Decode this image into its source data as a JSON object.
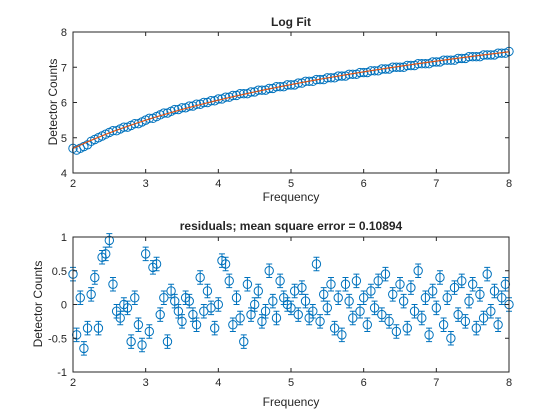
{
  "chart_data": [
    {
      "type": "scatter",
      "title": "Log Fit",
      "xlabel": "Frequency",
      "ylabel": "Detector Counts",
      "xlim": [
        2,
        8
      ],
      "ylim": [
        4,
        8
      ],
      "xticks": [
        2,
        3,
        4,
        5,
        6,
        7,
        8
      ],
      "yticks": [
        4,
        5,
        6,
        7,
        8
      ],
      "grid": false,
      "colors": {
        "markers": "#0072BD",
        "fit": "#D95319"
      },
      "fit": {
        "model": "log",
        "x": [
          2,
          3,
          4,
          5,
          6,
          7,
          8
        ],
        "y": [
          4.65,
          5.55,
          6.1,
          6.5,
          6.85,
          7.15,
          7.45
        ]
      },
      "series": [
        {
          "marker": "circle",
          "x": [
            2.0,
            2.05,
            2.1,
            2.15,
            2.2,
            2.25,
            2.3,
            2.35,
            2.4,
            2.45,
            2.5,
            2.55,
            2.6,
            2.65,
            2.7,
            2.75,
            2.8,
            2.85,
            2.9,
            2.95,
            3.0,
            3.05,
            3.1,
            3.15,
            3.2,
            3.25,
            3.3,
            3.35,
            3.4,
            3.45,
            3.5,
            3.55,
            3.6,
            3.65,
            3.7,
            3.75,
            3.8,
            3.85,
            3.9,
            3.95,
            4.0,
            4.05,
            4.1,
            4.15,
            4.2,
            4.25,
            4.3,
            4.35,
            4.4,
            4.45,
            4.5,
            4.55,
            4.6,
            4.65,
            4.7,
            4.75,
            4.8,
            4.85,
            4.9,
            4.95,
            5.0,
            5.05,
            5.1,
            5.15,
            5.2,
            5.25,
            5.3,
            5.35,
            5.4,
            5.45,
            5.5,
            5.55,
            5.6,
            5.65,
            5.7,
            5.75,
            5.8,
            5.85,
            5.9,
            5.95,
            6.0,
            6.05,
            6.1,
            6.15,
            6.2,
            6.25,
            6.3,
            6.35,
            6.4,
            6.45,
            6.5,
            6.55,
            6.6,
            6.65,
            6.7,
            6.75,
            6.8,
            6.85,
            6.9,
            6.95,
            7.0,
            7.05,
            7.1,
            7.15,
            7.2,
            7.25,
            7.3,
            7.35,
            7.4,
            7.45,
            7.5,
            7.55,
            7.6,
            7.65,
            7.7,
            7.75,
            7.8,
            7.85,
            7.9,
            7.95,
            8.0
          ],
          "y": [
            4.7,
            4.65,
            4.7,
            4.75,
            4.8,
            4.9,
            4.95,
            5.0,
            5.05,
            5.1,
            5.15,
            5.2,
            5.2,
            5.25,
            5.3,
            5.3,
            5.35,
            5.4,
            5.4,
            5.45,
            5.5,
            5.55,
            5.55,
            5.6,
            5.65,
            5.7,
            5.7,
            5.75,
            5.8,
            5.8,
            5.85,
            5.85,
            5.9,
            5.9,
            5.95,
            5.95,
            6.0,
            6.0,
            6.05,
            6.05,
            6.1,
            6.1,
            6.15,
            6.15,
            6.2,
            6.2,
            6.25,
            6.25,
            6.25,
            6.3,
            6.3,
            6.35,
            6.35,
            6.35,
            6.4,
            6.4,
            6.45,
            6.45,
            6.45,
            6.5,
            6.5,
            6.5,
            6.55,
            6.55,
            6.6,
            6.6,
            6.6,
            6.65,
            6.65,
            6.65,
            6.7,
            6.7,
            6.7,
            6.75,
            6.75,
            6.75,
            6.8,
            6.8,
            6.8,
            6.85,
            6.85,
            6.85,
            6.9,
            6.9,
            6.9,
            6.95,
            6.95,
            6.95,
            7.0,
            7.0,
            7.0,
            7.0,
            7.05,
            7.05,
            7.05,
            7.1,
            7.1,
            7.1,
            7.1,
            7.15,
            7.15,
            7.15,
            7.2,
            7.2,
            7.2,
            7.2,
            7.25,
            7.25,
            7.25,
            7.3,
            7.3,
            7.3,
            7.3,
            7.35,
            7.35,
            7.35,
            7.35,
            7.4,
            7.4,
            7.4,
            7.45
          ]
        }
      ]
    },
    {
      "type": "scatter",
      "title": "residuals; mean square error = 0.10894",
      "xlabel": "Frequency",
      "ylabel": "Detector Counts",
      "xlim": [
        2,
        8
      ],
      "ylim": [
        -1,
        1
      ],
      "xticks": [
        2,
        3,
        4,
        5,
        6,
        7,
        8
      ],
      "yticks": [
        -1,
        -0.5,
        0,
        0.5,
        1
      ],
      "grid": false,
      "colors": {
        "markers": "#0072BD"
      },
      "series": [
        {
          "marker": "circle",
          "error_bar": 0.1,
          "x": [
            2.0,
            2.05,
            2.1,
            2.15,
            2.2,
            2.25,
            2.3,
            2.35,
            2.4,
            2.45,
            2.5,
            2.55,
            2.6,
            2.65,
            2.7,
            2.75,
            2.8,
            2.85,
            2.9,
            2.95,
            3.0,
            3.05,
            3.1,
            3.15,
            3.2,
            3.25,
            3.3,
            3.35,
            3.4,
            3.45,
            3.5,
            3.55,
            3.6,
            3.65,
            3.7,
            3.75,
            3.8,
            3.85,
            3.9,
            3.95,
            4.0,
            4.05,
            4.1,
            4.15,
            4.2,
            4.25,
            4.3,
            4.35,
            4.4,
            4.45,
            4.5,
            4.55,
            4.6,
            4.65,
            4.7,
            4.75,
            4.8,
            4.85,
            4.9,
            4.95,
            5.0,
            5.05,
            5.1,
            5.15,
            5.2,
            5.25,
            5.3,
            5.35,
            5.4,
            5.45,
            5.5,
            5.55,
            5.6,
            5.65,
            5.7,
            5.75,
            5.8,
            5.85,
            5.9,
            5.95,
            6.0,
            6.05,
            6.1,
            6.15,
            6.2,
            6.25,
            6.3,
            6.35,
            6.4,
            6.45,
            6.5,
            6.55,
            6.6,
            6.65,
            6.7,
            6.75,
            6.8,
            6.85,
            6.9,
            6.95,
            7.0,
            7.05,
            7.1,
            7.15,
            7.2,
            7.25,
            7.3,
            7.35,
            7.4,
            7.45,
            7.5,
            7.55,
            7.6,
            7.65,
            7.7,
            7.75,
            7.8,
            7.85,
            7.9,
            7.95,
            8.0
          ],
          "y": [
            0.45,
            -0.45,
            0.1,
            -0.65,
            -0.35,
            0.15,
            0.4,
            -0.35,
            0.7,
            0.75,
            0.95,
            0.3,
            -0.1,
            -0.2,
            0.0,
            -0.05,
            -0.55,
            0.1,
            -0.3,
            -0.6,
            0.75,
            -0.4,
            0.55,
            0.6,
            -0.15,
            0.1,
            -0.55,
            0.2,
            0.05,
            -0.1,
            -0.25,
            0.1,
            0.05,
            -0.15,
            -0.3,
            0.4,
            -0.1,
            0.2,
            -0.05,
            -0.35,
            0.0,
            0.65,
            0.6,
            0.35,
            -0.3,
            0.1,
            -0.2,
            -0.55,
            0.3,
            -0.15,
            0.0,
            0.2,
            -0.25,
            -0.1,
            0.5,
            0.05,
            -0.2,
            0.35,
            0.1,
            0.0,
            -0.05,
            0.2,
            -0.15,
            0.25,
            0.05,
            -0.2,
            -0.1,
            0.6,
            -0.25,
            0.15,
            -0.05,
            0.3,
            -0.35,
            0.1,
            -0.45,
            0.3,
            0.05,
            -0.2,
            0.35,
            -0.1,
            0.1,
            -0.3,
            0.2,
            -0.05,
            0.35,
            -0.15,
            0.45,
            -0.25,
            0.15,
            -0.4,
            0.3,
            0.05,
            -0.35,
            0.25,
            -0.1,
            0.5,
            -0.2,
            0.1,
            -0.45,
            0.2,
            -0.05,
            0.4,
            -0.3,
            0.1,
            -0.5,
            0.25,
            -0.15,
            0.35,
            -0.25,
            0.05,
            0.3,
            -0.35,
            0.15,
            -0.2,
            0.45,
            -0.1,
            0.2,
            -0.3,
            0.1,
            0.3,
            0.0
          ]
        }
      ]
    }
  ]
}
